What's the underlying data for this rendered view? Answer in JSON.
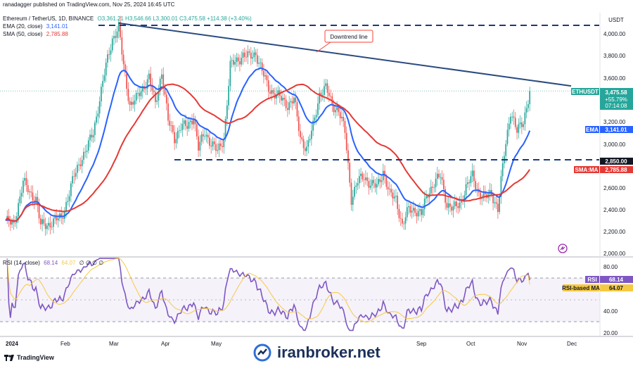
{
  "header": {
    "published": "ranadagger published on TradingView.com, Nov 25, 2024 16:45 UTC",
    "symbol_line": "Ethereum / TetherUS, 1D, BINANCE",
    "ohlc": "O3,361.21  H3,546.66  L3,300.01  C3,475.58  +114.38 (+3.40%)",
    "ema_label": "EMA (20, close)",
    "ema_value": "3,141.01",
    "sma_label": "SMA (50, close)",
    "sma_value": "2,785.88",
    "rsi_label": "RSI (14, close)",
    "rsi_value": "68.14",
    "rsi_ma_value": "64.07",
    "rsi_extra": "∅ ∅ ∅ ∅"
  },
  "axis": {
    "unit": "USDT",
    "price_ticks": [
      "4,000.00",
      "3,800.00",
      "3,600.00",
      "3,200.00",
      "3,000.00",
      "2,600.00",
      "2,400.00",
      "2,200.00",
      "2,000.00"
    ],
    "rsi_ticks": [
      "80.00",
      "40.00",
      "20.00"
    ],
    "x_ticks": [
      "2024",
      "Feb",
      "Mar",
      "Apr",
      "May",
      "Sep",
      "Oct",
      "Nov",
      "Dec"
    ]
  },
  "labels": {
    "ethusdt": "ETHUSDT",
    "last_price": "3,475.58",
    "change": "+55.79%",
    "countdown": "07:14:08",
    "ema_tag": "EMA",
    "ema_tag_value": "3,141.01",
    "support_value": "2,850.00",
    "sma_tag": "SMA:MA",
    "sma_tag_value": "2,785.88",
    "rsi_tag": "RSI",
    "rsi_tag_value": "68.14",
    "rsi_ma_tag": "RSI-based MA",
    "rsi_ma_tag_value": "64.07",
    "downtrend": "Downtrend line"
  },
  "footer": {
    "tv_brand": "TradingView",
    "site": "iranbroker.net"
  },
  "colors": {
    "up": "#26a69a",
    "down": "#ef5350",
    "ema": "#2962ff",
    "sma": "#e53935",
    "rsi": "#7e57c2",
    "rsi_ma": "#f6c944",
    "trendline": "#2a4a7f",
    "level": "#1b3a78",
    "annotation": "#f44336"
  },
  "chart_data": {
    "type": "candlestick",
    "unit": "USDT",
    "ylim": [
      1950,
      4120
    ],
    "resistance_level": 4070,
    "support_level": 2850,
    "trendline": {
      "start": [
        "Mar 12",
        4090
      ],
      "end": [
        "Nov 25",
        3520
      ]
    },
    "price_path": [
      [
        "Jan 01",
        2300
      ],
      [
        "Jan 06",
        2250
      ],
      [
        "Jan 09",
        2450
      ],
      [
        "Jan 12",
        2650
      ],
      [
        "Jan 16",
        2550
      ],
      [
        "Jan 20",
        2500
      ],
      [
        "Jan 23",
        2250
      ],
      [
        "Jan 27",
        2260
      ],
      [
        "Feb 01",
        2300
      ],
      [
        "Feb 05",
        2320
      ],
      [
        "Feb 09",
        2500
      ],
      [
        "Feb 13",
        2700
      ],
      [
        "Feb 17",
        2850
      ],
      [
        "Feb 21",
        2950
      ],
      [
        "Feb 25",
        3100
      ],
      [
        "Feb 29",
        3400
      ],
      [
        "Mar 04",
        3700
      ],
      [
        "Mar 08",
        3950
      ],
      [
        "Mar 12",
        4050
      ],
      [
        "Mar 15",
        3700
      ],
      [
        "Mar 19",
        3350
      ],
      [
        "Mar 23",
        3400
      ],
      [
        "Mar 27",
        3500
      ],
      [
        "Mar 31",
        3600
      ],
      [
        "Apr 04",
        3350
      ],
      [
        "Apr 08",
        3650
      ],
      [
        "Apr 12",
        3200
      ],
      [
        "Apr 16",
        3050
      ],
      [
        "Apr 20",
        3150
      ],
      [
        "Apr 24",
        3150
      ],
      [
        "Apr 28",
        3250
      ],
      [
        "May 01",
        2950
      ],
      [
        "May 05",
        3100
      ],
      [
        "May 09",
        3000
      ],
      [
        "May 13",
        2920
      ],
      [
        "May 17",
        3050
      ],
      [
        "May 21",
        3700
      ],
      [
        "May 25",
        3750
      ],
      [
        "May 29",
        3800
      ],
      [
        "Jun 02",
        3780
      ],
      [
        "Jun 06",
        3820
      ],
      [
        "Jun 10",
        3650
      ],
      [
        "Jun 14",
        3500
      ],
      [
        "Jun 18",
        3450
      ],
      [
        "Jun 22",
        3400
      ],
      [
        "Jun 26",
        3350
      ],
      [
        "Jun 30",
        3400
      ],
      [
        "Jul 04",
        3050
      ],
      [
        "Jul 08",
        2950
      ],
      [
        "Jul 12",
        3150
      ],
      [
        "Jul 16",
        3450
      ],
      [
        "Jul 20",
        3500
      ],
      [
        "Jul 24",
        3350
      ],
      [
        "Jul 28",
        3300
      ],
      [
        "Aug 01",
        3100
      ],
      [
        "Aug 05",
        2500
      ],
      [
        "Aug 09",
        2650
      ],
      [
        "Aug 13",
        2700
      ],
      [
        "Aug 17",
        2630
      ],
      [
        "Aug 21",
        2600
      ],
      [
        "Aug 25",
        2750
      ],
      [
        "Aug 29",
        2530
      ],
      [
        "Sep 02",
        2500
      ],
      [
        "Sep 06",
        2250
      ],
      [
        "Sep 10",
        2400
      ],
      [
        "Sep 14",
        2400
      ],
      [
        "Sep 18",
        2350
      ],
      [
        "Sep 22",
        2550
      ],
      [
        "Sep 26",
        2640
      ],
      [
        "Sep 30",
        2700
      ],
      [
        "Oct 04",
        2450
      ],
      [
        "Oct 08",
        2400
      ],
      [
        "Oct 12",
        2450
      ],
      [
        "Oct 16",
        2600
      ],
      [
        "Oct 20",
        2700
      ],
      [
        "Oct 24",
        2550
      ],
      [
        "Oct 28",
        2500
      ],
      [
        "Nov 01",
        2550
      ],
      [
        "Nov 05",
        2400
      ],
      [
        "Nov 09",
        2900
      ],
      [
        "Nov 13",
        3300
      ],
      [
        "Nov 17",
        3100
      ],
      [
        "Nov 21",
        3200
      ],
      [
        "Nov 25",
        3475
      ]
    ],
    "ema20_last": 3141.01,
    "sma50_last": 2785.88,
    "rsi_last": 68.14,
    "rsi_ma_last": 64.07
  }
}
